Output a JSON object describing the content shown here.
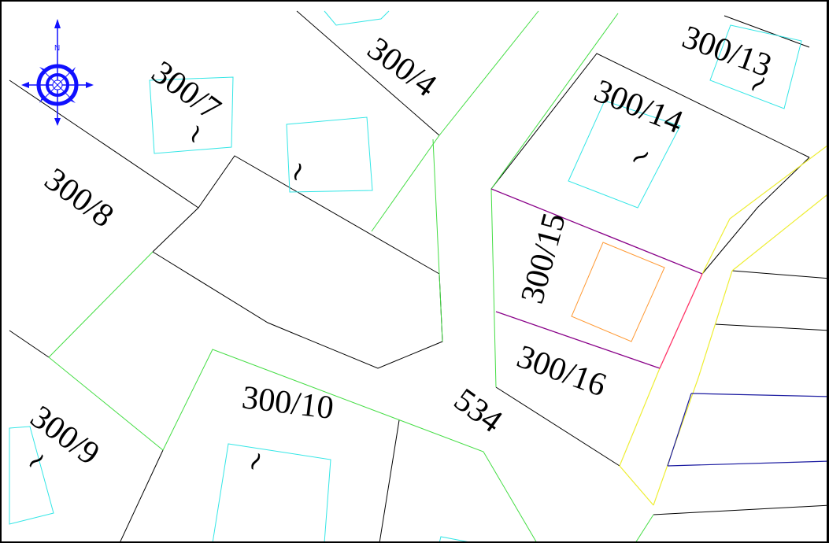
{
  "map": {
    "compass": {
      "north_label": "N",
      "color": "#1010ff"
    },
    "parcels": {
      "p300_4": "300/4",
      "p300_7": "300/7",
      "p300_8": "300/8",
      "p300_9": "300/9",
      "p300_10": "300/10",
      "p300_13": "300/13",
      "p300_14": "300/14",
      "p300_15": "300/15",
      "p300_16": "300/16",
      "p534": "534"
    },
    "building_symbol": "~",
    "colors": {
      "boundary": "#000000",
      "building": "#33e6e6",
      "green_boundary": "#44dd44",
      "yellow_boundary": "#eeee33",
      "purple_boundary": "#880088",
      "red_boundary": "#ff3366",
      "orange_building": "#ff9933",
      "blue_line": "#1a1aa0"
    }
  }
}
